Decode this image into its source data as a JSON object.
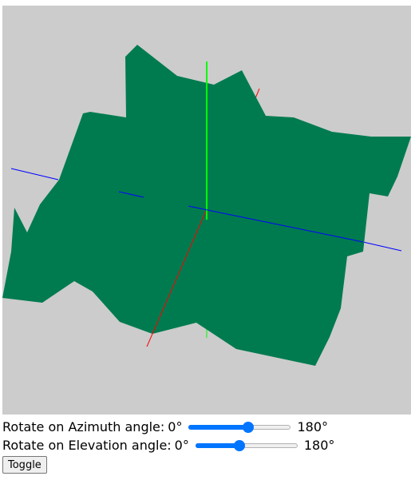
{
  "scene": {
    "background_color": "#cccccc",
    "surface_color": "#007b4f",
    "axis_x_color": "#ff0000",
    "axis_y_color": "#00ff00",
    "axis_z_color": "#0000ff"
  },
  "controls": {
    "azimuth": {
      "label": "Rotate on Azimuth angle:",
      "value_text": "0°",
      "max_text": "180°",
      "fraction": 0.58
    },
    "elevation": {
      "label": "Rotate on Elevation angle:",
      "value_text": "0°",
      "max_text": "180°",
      "fraction": 0.43
    },
    "toggle_label": "Toggle"
  }
}
